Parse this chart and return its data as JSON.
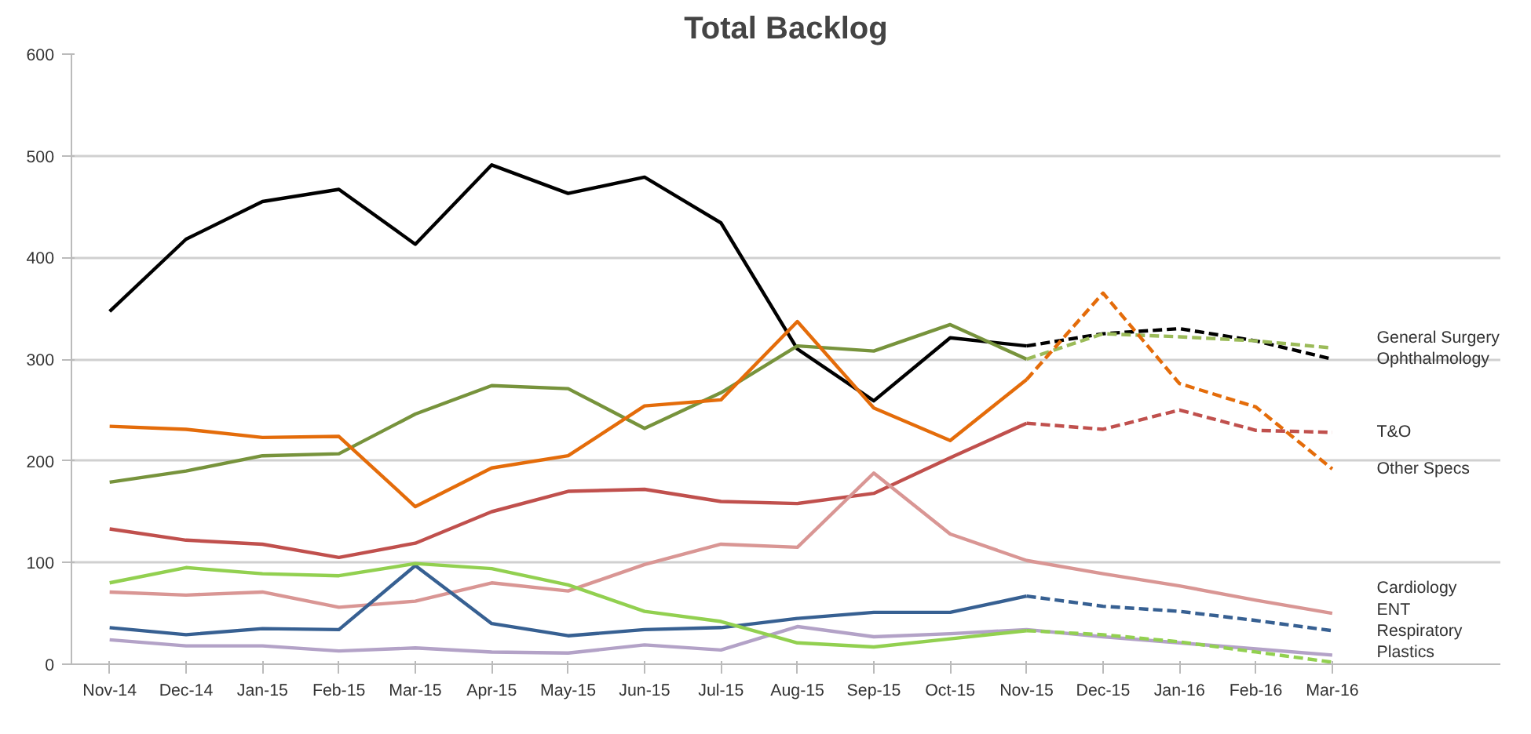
{
  "chart_data": {
    "type": "line",
    "title": "Total Backlog",
    "categories": [
      "Nov-14",
      "Dec-14",
      "Jan-15",
      "Feb-15",
      "Mar-15",
      "Apr-15",
      "May-15",
      "Jun-15",
      "Jul-15",
      "Aug-15",
      "Sep-15",
      "Oct-15",
      "Nov-15",
      "Dec-15",
      "Jan-16",
      "Feb-16",
      "Mar-16"
    ],
    "ylim": [
      0,
      600
    ],
    "yticks": [
      0,
      100,
      200,
      300,
      400,
      500,
      600
    ],
    "grid": "y",
    "marker": "none",
    "series": [
      {
        "color": "#000000",
        "line_style": "solid",
        "values": [
          347,
          418,
          455,
          467,
          413,
          491,
          463,
          479,
          434,
          310,
          259,
          321,
          313,
          null,
          null,
          null,
          null
        ]
      },
      {
        "name": "Ophthalmology",
        "color": "#000000",
        "line_style": "dashed",
        "values": [
          null,
          null,
          null,
          null,
          null,
          null,
          null,
          null,
          null,
          null,
          null,
          null,
          313,
          325,
          330,
          318,
          300
        ]
      },
      {
        "color": "#77933c",
        "line_style": "solid",
        "values": [
          179,
          190,
          205,
          207,
          246,
          274,
          271,
          232,
          267,
          313,
          308,
          334,
          300,
          null,
          null,
          null,
          null
        ]
      },
      {
        "name": "General Surgery",
        "color": "#9bbb59",
        "line_style": "dashed",
        "values": [
          null,
          null,
          null,
          null,
          null,
          null,
          null,
          null,
          null,
          null,
          null,
          null,
          300,
          325,
          322,
          318,
          311
        ]
      },
      {
        "color": "#e46c0a",
        "line_style": "solid",
        "values": [
          234,
          231,
          223,
          224,
          155,
          193,
          205,
          254,
          260,
          337,
          252,
          220,
          280,
          null,
          null,
          null,
          null
        ]
      },
      {
        "name": "Other Specs",
        "color": "#e46c0a",
        "line_style": "dashed",
        "values": [
          null,
          null,
          null,
          null,
          null,
          null,
          null,
          null,
          null,
          null,
          null,
          null,
          280,
          365,
          276,
          253,
          192
        ]
      },
      {
        "color": "#c0504d",
        "line_style": "solid",
        "values": [
          133,
          122,
          118,
          105,
          119,
          150,
          170,
          172,
          160,
          158,
          168,
          203,
          237,
          null,
          null,
          null,
          null
        ]
      },
      {
        "name": "T&O",
        "color": "#c0504d",
        "line_style": "dashed",
        "values": [
          null,
          null,
          null,
          null,
          null,
          null,
          null,
          null,
          null,
          null,
          null,
          null,
          237,
          231,
          250,
          230,
          228
        ]
      },
      {
        "name": "Cardiology",
        "color": "#d99694",
        "line_style": "solid",
        "values": [
          71,
          68,
          71,
          56,
          62,
          80,
          72,
          98,
          118,
          115,
          188,
          128,
          102,
          89,
          77,
          63,
          50
        ]
      },
      {
        "color": "#376092",
        "line_style": "solid",
        "values": [
          36,
          29,
          35,
          34,
          97,
          40,
          28,
          34,
          36,
          45,
          51,
          51,
          67,
          null,
          null,
          null,
          null
        ]
      },
      {
        "name": "ENT",
        "color": "#376092",
        "line_style": "dashed",
        "values": [
          null,
          null,
          null,
          null,
          null,
          null,
          null,
          null,
          null,
          null,
          null,
          null,
          67,
          57,
          52,
          43,
          33
        ]
      },
      {
        "name": "Respiratory",
        "color": "#b3a2c7",
        "line_style": "solid",
        "values": [
          24,
          18,
          18,
          13,
          16,
          12,
          11,
          19,
          14,
          37,
          27,
          30,
          34,
          27,
          21,
          15,
          9
        ]
      },
      {
        "color": "#92d050",
        "line_style": "solid",
        "values": [
          80,
          95,
          89,
          87,
          99,
          94,
          78,
          52,
          42,
          21,
          17,
          25,
          33,
          null,
          null,
          null,
          null
        ]
      },
      {
        "name": "Plastics",
        "color": "#92d050",
        "line_style": "dashed",
        "values": [
          null,
          null,
          null,
          null,
          null,
          null,
          null,
          null,
          null,
          null,
          null,
          null,
          33,
          29,
          22,
          12,
          2
        ]
      }
    ]
  }
}
